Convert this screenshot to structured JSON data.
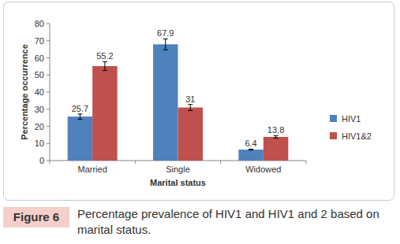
{
  "chart_data": {
    "type": "bar",
    "title": "Percentage prevalence of HIV1 and HIV1 and 2 based on marital status.",
    "annotations": [
      "Figure 6"
    ],
    "x_label": "Marital status",
    "y_label": "Percentage occurrence",
    "categories": [
      "Married",
      "Single",
      "Widowed"
    ],
    "series": [
      {
        "name": "HIV1",
        "color": "#4f81bd",
        "values": [
          25.7,
          67.9,
          6.4
        ],
        "errors": [
          1.5,
          3.2,
          0.3
        ]
      },
      {
        "name": "HIV1&2",
        "color": "#c0504d",
        "values": [
          55.2,
          31,
          13.8
        ],
        "errors": [
          2.6,
          1.8,
          0.7
        ]
      }
    ],
    "ylim": [
      0,
      80
    ],
    "yticks": [
      0,
      10,
      20,
      30,
      40,
      50,
      60,
      70,
      80
    ],
    "grid": false,
    "legend": "right",
    "data_labels": true
  }
}
